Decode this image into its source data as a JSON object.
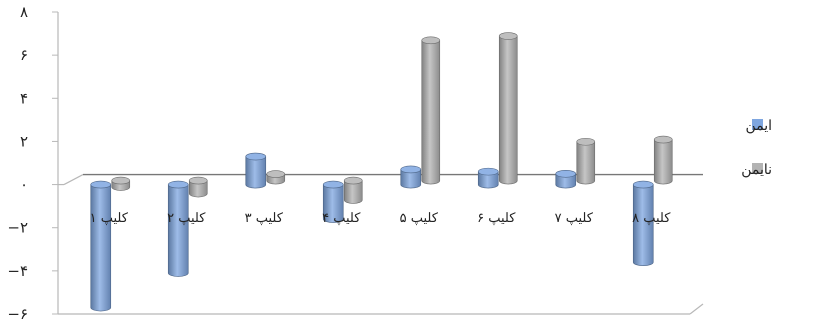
{
  "chart_data": {
    "type": "bar",
    "title": "",
    "xlabel": "",
    "ylabel": "",
    "ylim": [
      -6,
      8
    ],
    "yticks": [
      {
        "v": 8,
        "label": "۸"
      },
      {
        "v": 6,
        "label": "۶"
      },
      {
        "v": 4,
        "label": "۴"
      },
      {
        "v": 2,
        "label": "۲"
      },
      {
        "v": 0,
        "label": "۰"
      },
      {
        "v": -2,
        "label": "−۲"
      },
      {
        "v": -4,
        "label": "−۴"
      },
      {
        "v": -6,
        "label": "−۶"
      }
    ],
    "categories": [
      "کلیپ ۱",
      "کلیپ ۲",
      "کلیپ ۳",
      "کلیپ ۴",
      "کلیپ ۵",
      "کلیپ ۶",
      "کلیپ ۷",
      "کلیپ ۸"
    ],
    "series": [
      {
        "name": "ایمن",
        "color": "#7ea6e0",
        "values": [
          -5.7,
          -4.1,
          1.3,
          -1.6,
          0.7,
          0.6,
          0.5,
          -3.6
        ]
      },
      {
        "name": "نایمن",
        "color": "#b3b3b3",
        "values": [
          -0.3,
          -0.6,
          0.3,
          -0.9,
          6.5,
          6.7,
          1.8,
          1.9
        ]
      }
    ],
    "grid": false,
    "legend_position": "right"
  }
}
